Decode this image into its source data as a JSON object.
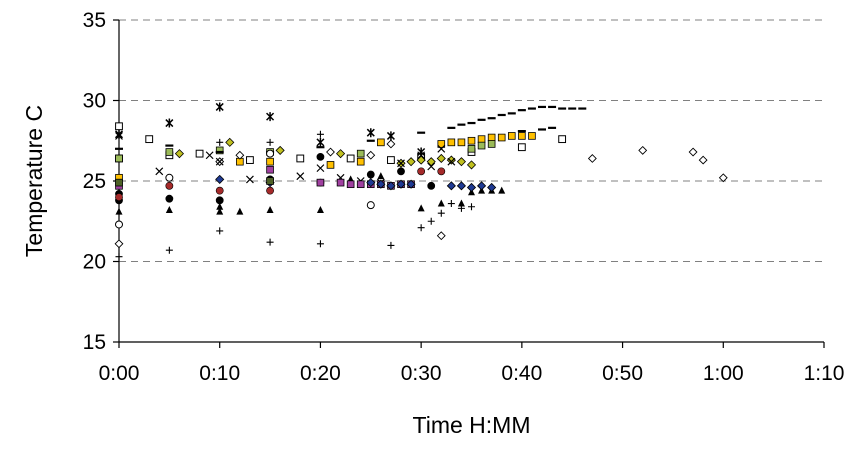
{
  "chart_data": {
    "type": "scatter",
    "title": "",
    "xlabel": "Time H:MM",
    "ylabel": "Temperature C",
    "xlim": [
      0,
      70
    ],
    "ylim": [
      15,
      35
    ],
    "x_ticks": [
      "0:00",
      "0:10",
      "0:20",
      "0:30",
      "0:40",
      "0:50",
      "1:00",
      "1:10"
    ],
    "y_ticks": [
      "15",
      "20",
      "25",
      "30",
      "35"
    ],
    "grid": "horizontal dashed",
    "legend": "none",
    "series": [
      {
        "marker": "open-square",
        "color": "#000000",
        "points": [
          [
            0,
            28.4
          ],
          [
            0,
            26.4
          ],
          [
            3,
            27.6
          ],
          [
            5,
            26.6
          ],
          [
            8,
            26.7
          ],
          [
            13,
            26.3
          ],
          [
            18,
            26.4
          ],
          [
            23,
            26.4
          ],
          [
            27,
            26.3
          ],
          [
            30,
            26.5
          ],
          [
            35,
            26.8
          ],
          [
            40,
            27.1
          ],
          [
            44,
            27.6
          ]
        ]
      },
      {
        "marker": "filled-square",
        "color": "#ffc000",
        "points": [
          [
            0,
            25.2
          ],
          [
            12,
            26.2
          ],
          [
            15,
            26.2
          ],
          [
            21,
            26.0
          ],
          [
            24,
            26.2
          ],
          [
            26,
            27.4
          ],
          [
            32,
            27.3
          ],
          [
            33,
            27.4
          ],
          [
            34,
            27.4
          ],
          [
            35,
            27.5
          ],
          [
            36,
            27.6
          ],
          [
            37,
            27.7
          ],
          [
            38,
            27.7
          ],
          [
            39,
            27.8
          ],
          [
            40,
            27.8
          ],
          [
            41,
            27.8
          ]
        ]
      },
      {
        "marker": "filled-square",
        "color": "#9bbb59",
        "points": [
          [
            0,
            26.4
          ],
          [
            5,
            26.8
          ],
          [
            10,
            26.9
          ],
          [
            15,
            26.8
          ],
          [
            24,
            26.7
          ],
          [
            35,
            27.0
          ],
          [
            36,
            27.2
          ],
          [
            37,
            27.3
          ]
        ]
      },
      {
        "marker": "filled-diamond",
        "color": "#c0c020",
        "points": [
          [
            6,
            26.7
          ],
          [
            11,
            27.4
          ],
          [
            16,
            26.9
          ],
          [
            22,
            26.7
          ],
          [
            28,
            26.1
          ],
          [
            29,
            26.2
          ],
          [
            30,
            26.3
          ],
          [
            31,
            26.2
          ],
          [
            32,
            26.4
          ],
          [
            33,
            26.3
          ],
          [
            34,
            26.2
          ],
          [
            35,
            26.0
          ]
        ]
      },
      {
        "marker": "open-diamond",
        "color": "#000000",
        "points": [
          [
            0,
            21.1
          ],
          [
            10,
            26.2
          ],
          [
            12,
            26.6
          ],
          [
            21,
            26.8
          ],
          [
            25,
            26.6
          ],
          [
            27,
            27.3
          ],
          [
            32,
            21.6
          ],
          [
            47,
            26.4
          ],
          [
            52,
            26.9
          ],
          [
            57,
            26.8
          ],
          [
            58,
            26.3
          ],
          [
            60,
            25.2
          ]
        ]
      },
      {
        "marker": "x",
        "color": "#000000",
        "points": [
          [
            0,
            27.8
          ],
          [
            4,
            25.6
          ],
          [
            9,
            26.6
          ],
          [
            10,
            26.2
          ],
          [
            13,
            25.1
          ],
          [
            18,
            25.3
          ],
          [
            20,
            25.8
          ],
          [
            22,
            25.2
          ],
          [
            24,
            25.0
          ],
          [
            26,
            24.9
          ],
          [
            28,
            26.1
          ],
          [
            30,
            26.6
          ],
          [
            31,
            25.9
          ],
          [
            32,
            27.0
          ],
          [
            33,
            26.2
          ]
        ]
      },
      {
        "marker": "star",
        "color": "#000000",
        "points": [
          [
            0,
            27.9
          ],
          [
            5,
            28.6
          ],
          [
            10,
            29.6
          ],
          [
            15,
            29.0
          ],
          [
            20,
            27.4
          ],
          [
            25,
            28.0
          ],
          [
            27,
            27.8
          ],
          [
            30,
            26.8
          ]
        ]
      },
      {
        "marker": "dash",
        "color": "#000000",
        "points": [
          [
            0,
            27.0
          ],
          [
            5,
            27.2
          ],
          [
            10,
            26.8
          ],
          [
            15,
            26.8
          ],
          [
            20,
            27.1
          ],
          [
            25,
            27.5
          ],
          [
            30,
            28.0
          ],
          [
            33,
            28.3
          ],
          [
            34,
            28.5
          ],
          [
            35,
            28.6
          ],
          [
            36,
            28.8
          ],
          [
            37,
            28.9
          ],
          [
            38,
            29.1
          ],
          [
            39,
            29.2
          ],
          [
            40,
            29.4
          ],
          [
            41,
            29.5
          ],
          [
            42,
            29.6
          ],
          [
            43,
            29.6
          ],
          [
            44,
            29.5
          ],
          [
            45,
            29.5
          ],
          [
            46,
            29.5
          ],
          [
            40,
            28.1
          ],
          [
            42,
            28.2
          ],
          [
            43,
            28.3
          ]
        ]
      },
      {
        "marker": "plus",
        "color": "#000000",
        "points": [
          [
            0,
            20.3
          ],
          [
            5,
            20.7
          ],
          [
            10,
            21.9
          ],
          [
            10,
            27.4
          ],
          [
            15,
            21.2
          ],
          [
            15,
            27.4
          ],
          [
            20,
            21.1
          ],
          [
            20,
            27.9
          ],
          [
            27,
            21.0
          ],
          [
            30,
            22.1
          ],
          [
            31,
            22.5
          ],
          [
            32,
            23.0
          ],
          [
            33,
            23.6
          ],
          [
            34,
            23.3
          ],
          [
            35,
            23.4
          ]
        ]
      },
      {
        "marker": "filled-circle",
        "color": "#000000",
        "points": [
          [
            0,
            24.2
          ],
          [
            0,
            23.8
          ],
          [
            5,
            23.9
          ],
          [
            10,
            23.8
          ],
          [
            15,
            25.1
          ],
          [
            20,
            26.5
          ],
          [
            25,
            25.4
          ],
          [
            28,
            25.6
          ],
          [
            31,
            24.7
          ]
        ]
      },
      {
        "marker": "filled-circle",
        "color": "#a52a2a",
        "points": [
          [
            0,
            24.0
          ],
          [
            5,
            24.7
          ],
          [
            10,
            24.4
          ],
          [
            15,
            24.4
          ],
          [
            20,
            24.9
          ],
          [
            30,
            25.6
          ],
          [
            32,
            25.6
          ]
        ]
      },
      {
        "marker": "open-circle",
        "color": "#000000",
        "points": [
          [
            0,
            22.3
          ],
          [
            5,
            25.2
          ],
          [
            15,
            26.7
          ],
          [
            25,
            23.5
          ]
        ]
      },
      {
        "marker": "filled-triangle",
        "color": "#000000",
        "points": [
          [
            0,
            23.1
          ],
          [
            5,
            23.2
          ],
          [
            10,
            23.4
          ],
          [
            10,
            23.1
          ],
          [
            12,
            23.1
          ],
          [
            15,
            23.2
          ],
          [
            20,
            23.2
          ],
          [
            23,
            25.1
          ],
          [
            26,
            25.3
          ],
          [
            30,
            23.3
          ],
          [
            32,
            23.6
          ],
          [
            34,
            23.6
          ],
          [
            35,
            24.3
          ],
          [
            36,
            24.4
          ],
          [
            37,
            24.4
          ],
          [
            38,
            24.4
          ]
        ]
      },
      {
        "marker": "filled-square",
        "color": "#a040a0",
        "points": [
          [
            0,
            24.7
          ],
          [
            15,
            25.7
          ],
          [
            20,
            24.9
          ],
          [
            22,
            24.9
          ],
          [
            23,
            24.8
          ],
          [
            24,
            24.8
          ],
          [
            25,
            24.8
          ],
          [
            26,
            24.8
          ],
          [
            27,
            24.7
          ],
          [
            28,
            24.8
          ],
          [
            29,
            24.8
          ]
        ]
      },
      {
        "marker": "filled-diamond",
        "color": "#1f3a93",
        "points": [
          [
            10,
            25.1
          ],
          [
            15,
            24.9
          ],
          [
            25,
            24.9
          ],
          [
            26,
            24.8
          ],
          [
            27,
            24.7
          ],
          [
            28,
            24.8
          ],
          [
            29,
            24.8
          ],
          [
            33,
            24.7
          ],
          [
            34,
            24.7
          ],
          [
            35,
            24.6
          ],
          [
            36,
            24.7
          ],
          [
            37,
            24.6
          ]
        ]
      },
      {
        "marker": "filled-square",
        "color": "#4f6228",
        "points": [
          [
            0,
            24.9
          ],
          [
            15,
            25.0
          ]
        ]
      }
    ]
  }
}
